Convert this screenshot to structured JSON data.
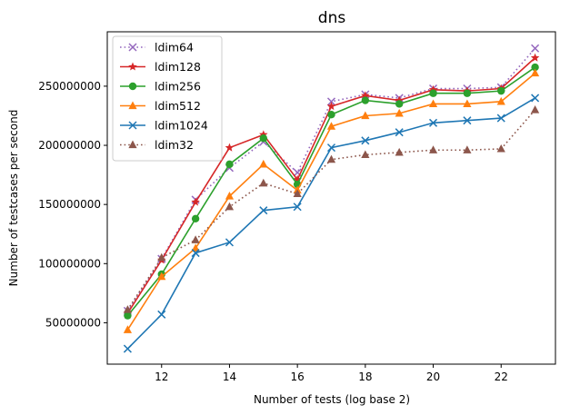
{
  "chart_data": {
    "type": "line",
    "title": "dns",
    "xlabel": "Number of tests (log base 2)",
    "ylabel": "Number of testcases per second",
    "x": [
      11,
      12,
      13,
      14,
      15,
      16,
      17,
      18,
      19,
      20,
      21,
      22,
      23
    ],
    "xticks": [
      12,
      14,
      16,
      18,
      20,
      22
    ],
    "xtick_labels": [
      "12",
      "14",
      "16",
      "18",
      "20",
      "22"
    ],
    "xlim": [
      10.4,
      23.6
    ],
    "yticks": [
      50000000,
      100000000,
      150000000,
      200000000,
      250000000
    ],
    "ytick_labels": [
      "50000000",
      "100000000",
      "150000000",
      "200000000",
      "250000000"
    ],
    "ylim": [
      15000000,
      296000000
    ],
    "grid": false,
    "legend_position": "upper left",
    "series": [
      {
        "name": "ldim64",
        "color": "#9467bd",
        "marker": "x",
        "linestyle": "dotted",
        "values": [
          60000000,
          104000000,
          154000000,
          181000000,
          203000000,
          177000000,
          237000000,
          243000000,
          240000000,
          248000000,
          248000000,
          249000000,
          282000000
        ]
      },
      {
        "name": "ldim128",
        "color": "#d62728",
        "marker": "star",
        "linestyle": "solid",
        "values": [
          58000000,
          103000000,
          152000000,
          198000000,
          209000000,
          171000000,
          233000000,
          242000000,
          238000000,
          247000000,
          246000000,
          248000000,
          274000000
        ]
      },
      {
        "name": "ldim256",
        "color": "#2ca02c",
        "marker": "circle",
        "linestyle": "solid",
        "values": [
          56000000,
          91000000,
          138000000,
          184000000,
          206000000,
          167000000,
          226000000,
          238000000,
          235000000,
          244000000,
          244000000,
          246000000,
          266000000
        ]
      },
      {
        "name": "ldim512",
        "color": "#ff7f0e",
        "marker": "triangle",
        "linestyle": "solid",
        "values": [
          44000000,
          89000000,
          113000000,
          157000000,
          184000000,
          162000000,
          216000000,
          225000000,
          227000000,
          235000000,
          235000000,
          237000000,
          261000000
        ]
      },
      {
        "name": "ldim1024",
        "color": "#1f77b4",
        "marker": "x",
        "linestyle": "solid",
        "values": [
          28000000,
          57000000,
          109000000,
          118000000,
          145000000,
          148000000,
          198000000,
          204000000,
          211000000,
          219000000,
          221000000,
          223000000,
          240000000
        ]
      },
      {
        "name": "ldim32",
        "color": "#8c564b",
        "marker": "triangle",
        "linestyle": "dotted",
        "values": [
          61000000,
          105000000,
          120000000,
          148000000,
          168000000,
          159000000,
          188000000,
          192000000,
          194000000,
          196000000,
          196000000,
          197000000,
          230000000
        ]
      }
    ]
  }
}
